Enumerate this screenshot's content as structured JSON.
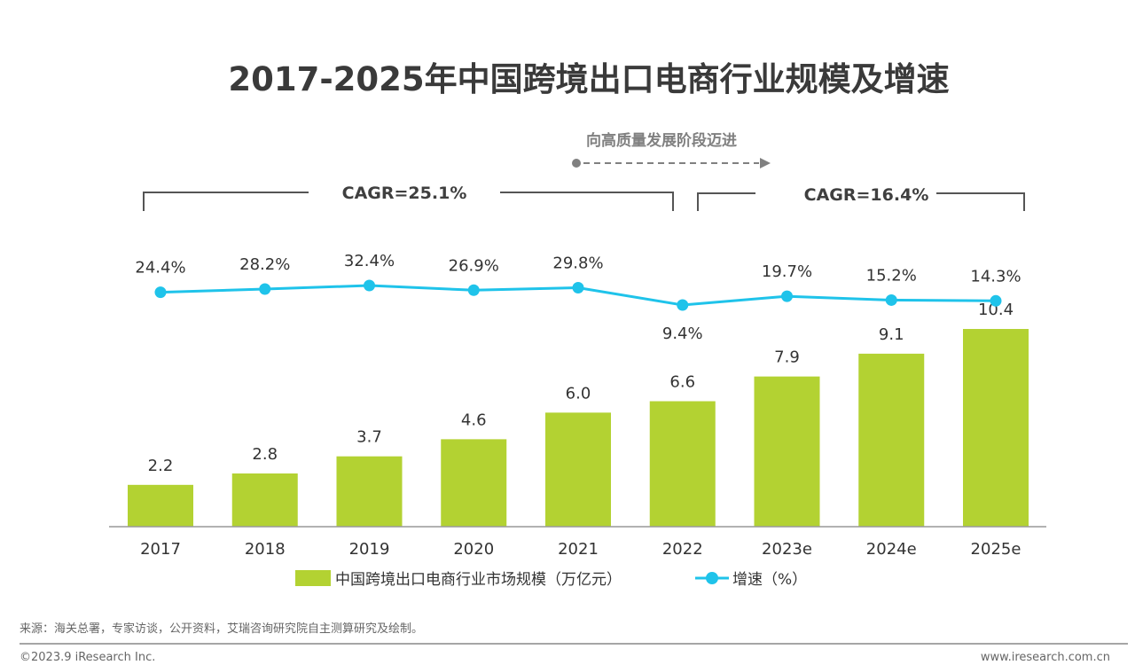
{
  "chart_data": {
    "type": "bar+line",
    "title": "2017-2025年中国跨境出口电商行业规模及增速",
    "categories": [
      "2017",
      "2018",
      "2019",
      "2020",
      "2021",
      "2022",
      "2023e",
      "2024e",
      "2025e"
    ],
    "series": [
      {
        "name": "中国跨境出口电商行业市场规模（万亿元）",
        "type": "bar",
        "color": "#b3d232",
        "values": [
          2.2,
          2.8,
          3.7,
          4.6,
          6.0,
          6.6,
          7.9,
          9.1,
          10.4
        ],
        "labels": [
          "2.2",
          "2.8",
          "3.7",
          "4.6",
          "6.0",
          "6.6",
          "7.9",
          "9.1",
          "10.4"
        ]
      },
      {
        "name": "增速（%）",
        "type": "line",
        "color": "#1fc3ea",
        "values": [
          24.4,
          28.2,
          32.4,
          26.9,
          29.8,
          9.4,
          19.7,
          15.2,
          14.3
        ],
        "labels": [
          "24.4%",
          "28.2%",
          "32.4%",
          "26.9%",
          "29.8%",
          "9.4%",
          "19.7%",
          "15.2%",
          "14.3%"
        ]
      }
    ],
    "annotations": {
      "cagr_1": "CAGR=25.1%",
      "cagr_2": "CAGR=16.4%",
      "trend_note": "向高质量发展阶段迈进"
    },
    "legend_position": "bottom",
    "grid": false
  },
  "source": "来源：海关总署，专家访谈，公开资料，艾瑞咨询研究院自主测算研究及绘制。",
  "footer": {
    "copyright": "©2023.9 iResearch Inc.",
    "website": "www.iresearch.com.cn"
  }
}
